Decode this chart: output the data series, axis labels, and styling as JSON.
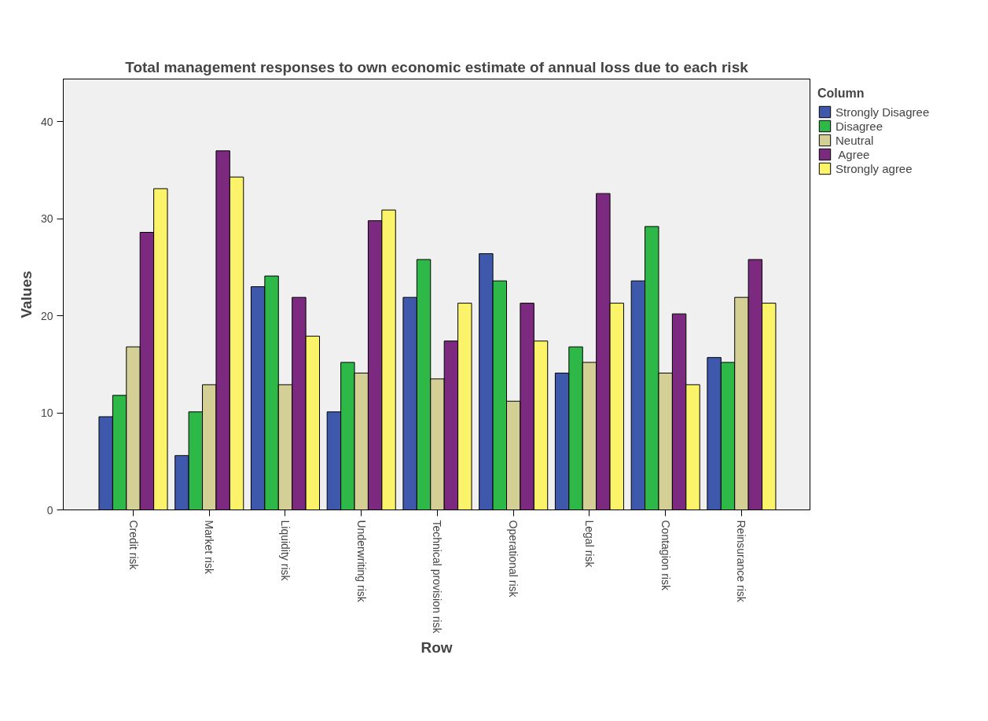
{
  "chart_data": {
    "type": "bar",
    "title": "Total management responses to own economic estimate of annual loss due to each risk",
    "xlabel": "Row",
    "ylabel": "Values",
    "legend_title": "Column",
    "legend": "top right",
    "categories": [
      "Credit risk",
      "Market risk",
      "Liquidity risk",
      "Underwriting risk",
      "Technical provision risk",
      "Operational risk",
      "Legal risk",
      "Contagion risk",
      "Reinsurance risk"
    ],
    "series": [
      {
        "name": "Strongly Disagree",
        "color": "#3e58ac",
        "values": [
          9.6,
          5.6,
          23.0,
          10.1,
          21.9,
          26.4,
          14.1,
          23.6,
          15.7
        ]
      },
      {
        "name": "Disagree",
        "color": "#2eb848",
        "values": [
          11.8,
          10.1,
          24.1,
          15.2,
          25.8,
          23.6,
          16.8,
          29.2,
          15.2
        ]
      },
      {
        "name": "Neutral",
        "color": "#d4cf95",
        "values": [
          16.8,
          12.9,
          12.9,
          14.1,
          13.5,
          11.2,
          15.2,
          14.1,
          21.9
        ]
      },
      {
        "name": " Agree",
        "color": "#7b2a7f",
        "values": [
          28.6,
          37.0,
          21.9,
          29.8,
          17.4,
          21.3,
          32.6,
          20.2,
          25.8
        ]
      },
      {
        "name": "Strongly agree",
        "color": "#fbf46b",
        "values": [
          33.1,
          34.3,
          17.9,
          30.9,
          21.3,
          17.4,
          21.3,
          12.9,
          21.3
        ]
      }
    ],
    "ylim": [
      0,
      44.4
    ],
    "yticks": [
      0,
      10,
      20,
      30,
      40
    ],
    "grid": false
  }
}
